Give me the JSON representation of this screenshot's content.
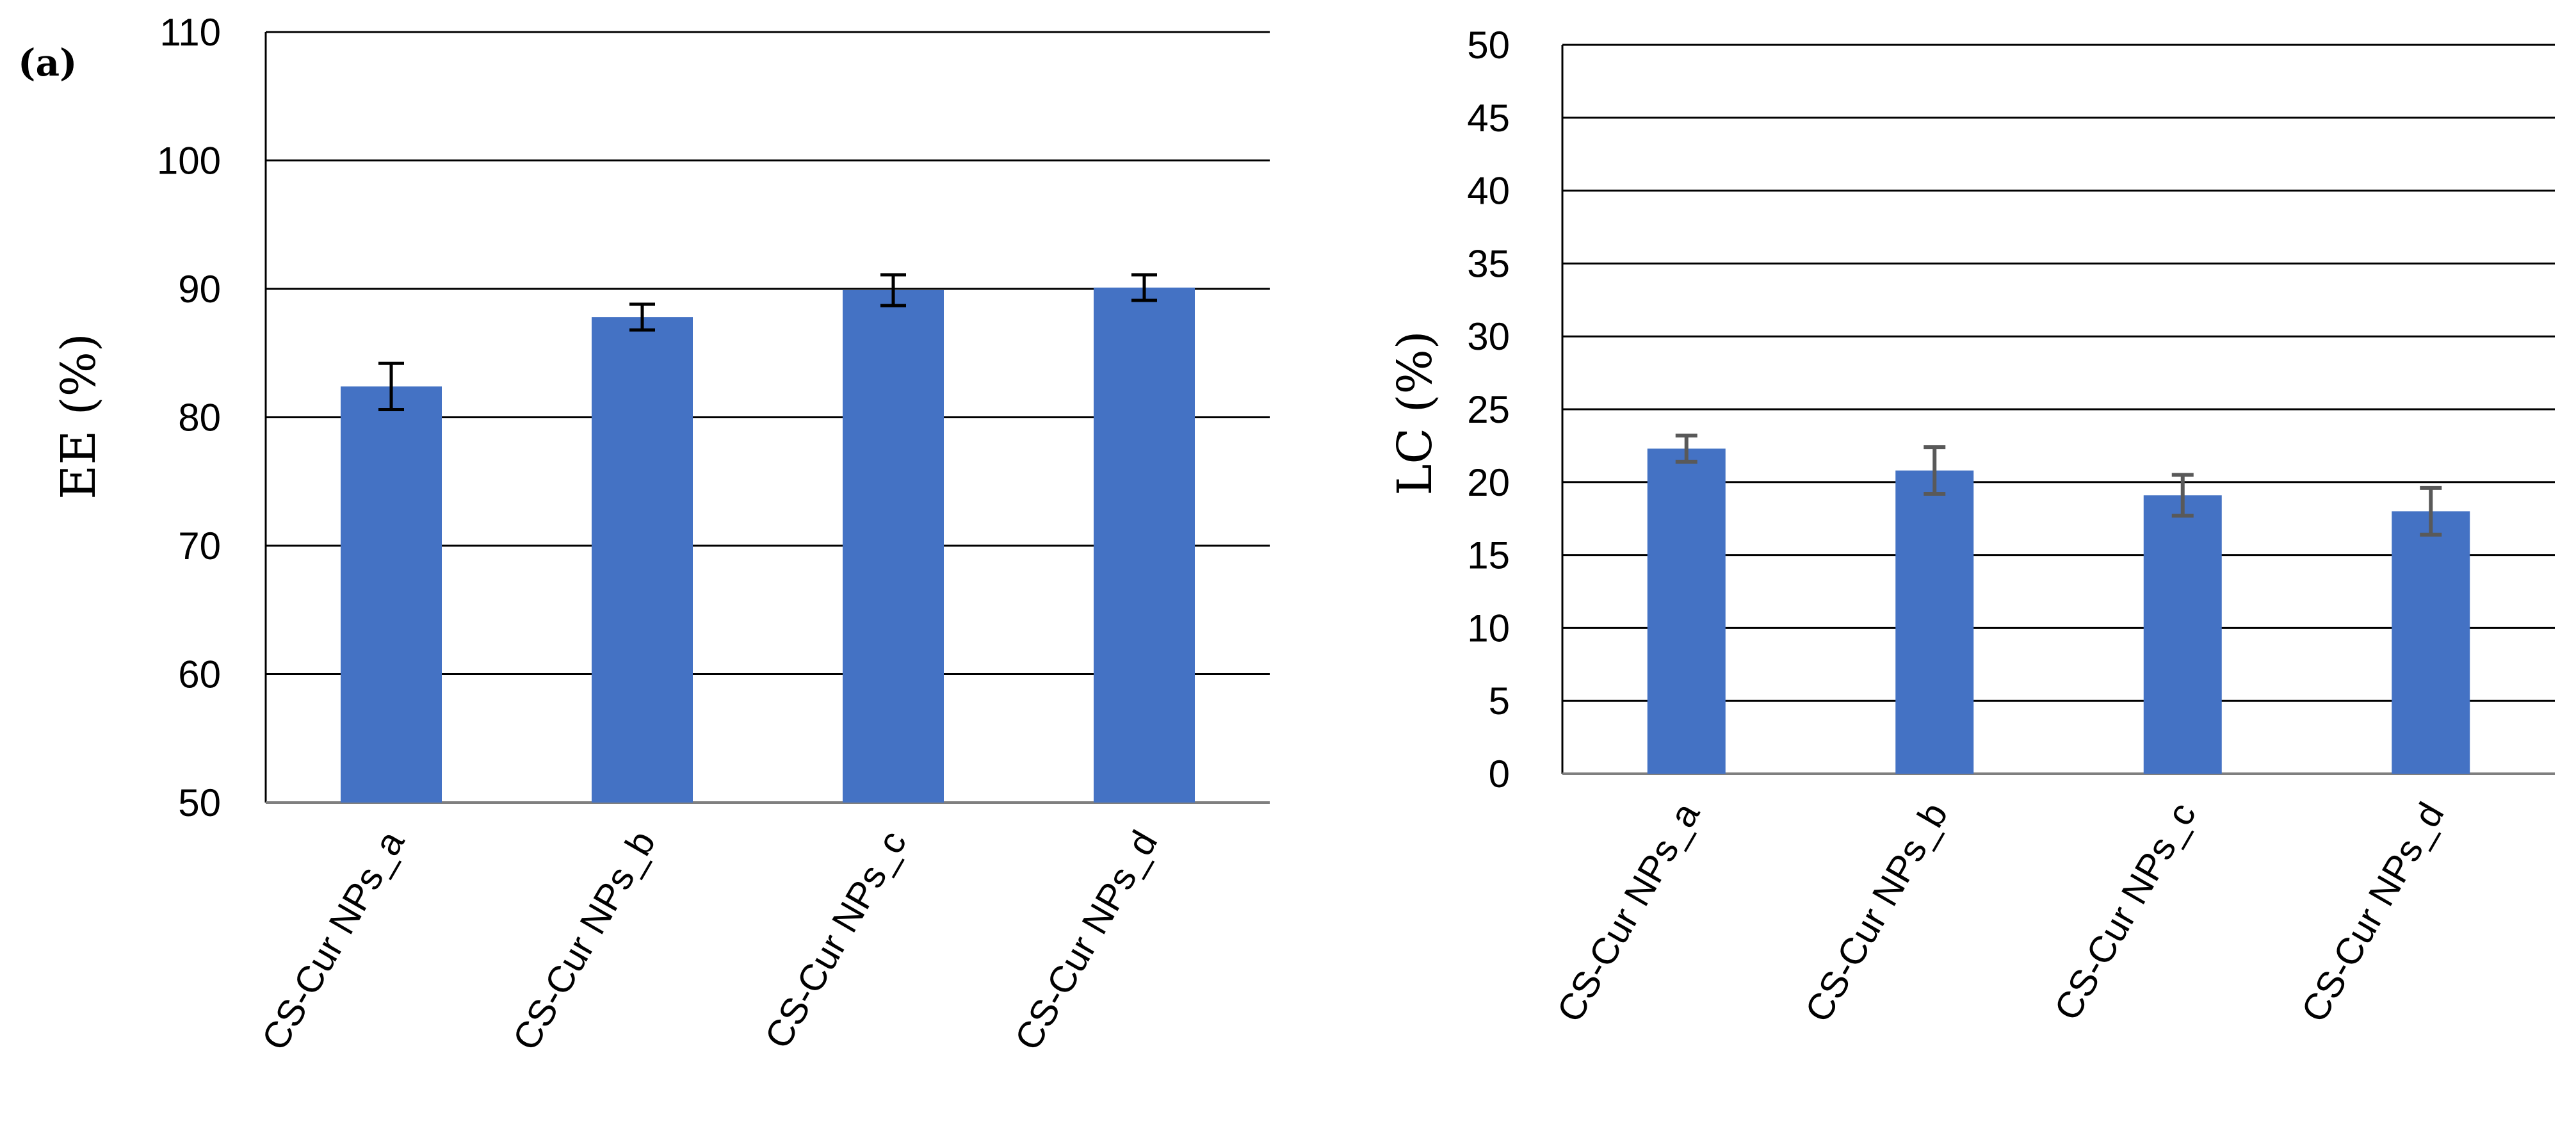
{
  "panel_label": "(a)",
  "colors": {
    "bar": "#4472C4",
    "grid": "#000000",
    "axis": "#7f7f7f",
    "error_left": "#000000",
    "error_right": "#595959"
  },
  "chart_data": [
    {
      "type": "bar",
      "categories": [
        "CS-Cur NPs_a",
        "CS-Cur NPs_b",
        "CS-Cur NPs_c",
        "CS-Cur NPs_d"
      ],
      "values": [
        82.4,
        87.8,
        89.9,
        90.1
      ],
      "errors": [
        1.8,
        1.0,
        1.2,
        1.0
      ],
      "ylabel": "EE (%)",
      "ylim": [
        50,
        110
      ],
      "yticks": [
        50,
        60,
        70,
        80,
        90,
        100,
        110
      ],
      "grid": true
    },
    {
      "type": "bar",
      "categories": [
        "CS-Cur NPs_a",
        "CS-Cur NPs_b",
        "CS-Cur NPs_c",
        "CS-Cur NPs_d"
      ],
      "values": [
        22.3,
        20.8,
        19.1,
        18.0
      ],
      "errors": [
        0.9,
        1.6,
        1.4,
        1.6
      ],
      "ylabel": "LC (%)",
      "ylim": [
        0,
        50
      ],
      "yticks": [
        0,
        5,
        10,
        15,
        20,
        25,
        30,
        35,
        40,
        45,
        50
      ],
      "grid": true
    }
  ]
}
